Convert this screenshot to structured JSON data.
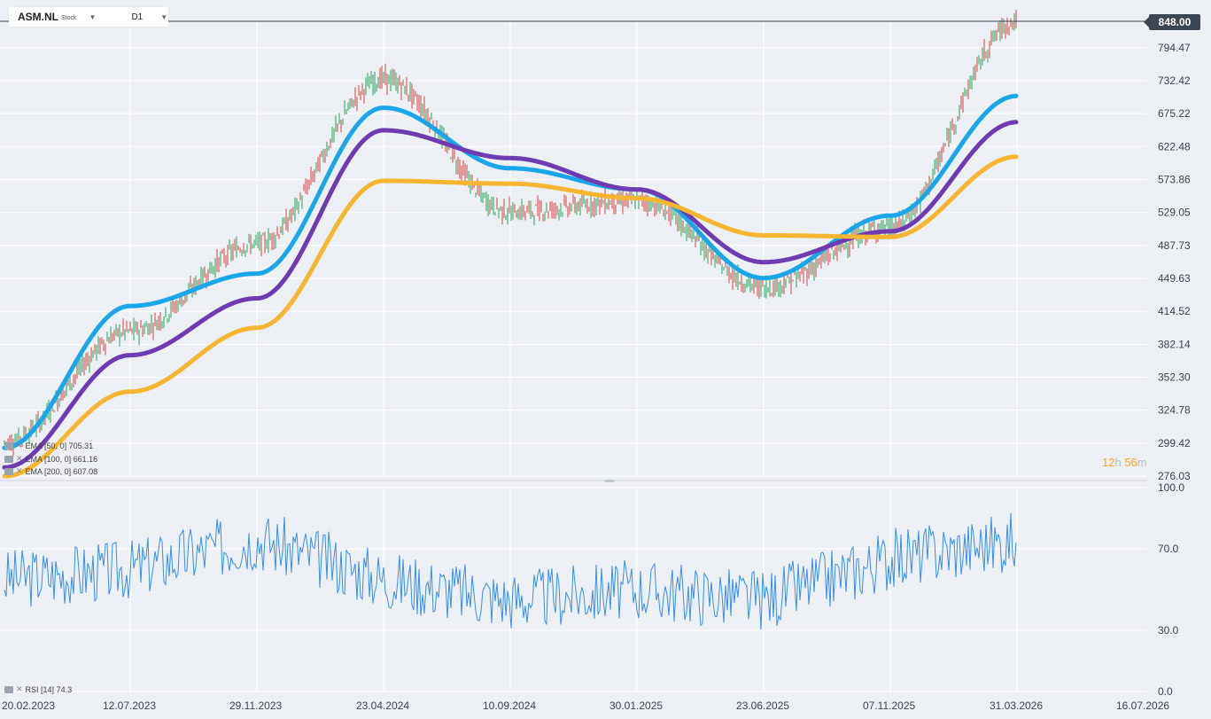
{
  "header": {
    "symbol": "ASM.NL",
    "symbol_type": "Stock",
    "interval": "D1"
  },
  "price_tag": "848.00",
  "timer": {
    "hours": "12",
    "h_unit": "h",
    "minutes": "56",
    "m_unit": "m"
  },
  "legend": {
    "ema50": "EMA [50, 0] 705.31",
    "ema100": "EMA [100, 0] 661.16",
    "ema200": "EMA [200, 0] 607.08",
    "rsi": "RSI [14] 74.3"
  },
  "colors": {
    "background": "#eceff3",
    "grid": "#ffffff",
    "candle_up": "#26a65b",
    "candle_down": "#d64545",
    "ema50": "#1ba6e8",
    "ema100": "#6f3bb0",
    "ema200": "#f5b731",
    "rsi": "#3a8ee6",
    "price_line": "#3d4653"
  },
  "chart_data": [
    {
      "type": "candlestick",
      "title": "ASM.NL",
      "x_ticks": [
        "20.02.2023",
        "12.07.2023",
        "29.11.2023",
        "23.04.2024",
        "10.09.2024",
        "30.01.2025",
        "23.06.2025",
        "07.11.2025",
        "31.03.2026",
        "16.07.2026"
      ],
      "y_ticks": [
        "276.03",
        "299.42",
        "324.78",
        "352.30",
        "382.14",
        "414.52",
        "449.63",
        "487.73",
        "529.05",
        "573.86",
        "622.48",
        "675.22",
        "732.42",
        "794.47"
      ],
      "scale": "log",
      "ylim": [
        276.03,
        848.0
      ],
      "last_price": 848.0,
      "series": [
        {
          "name": "Price",
          "x": [
            "20.02.2023",
            "12.07.2023",
            "29.11.2023",
            "23.04.2024",
            "10.09.2024",
            "30.01.2025",
            "23.06.2025",
            "07.11.2025",
            "31.03.2026"
          ],
          "values": [
            300,
            395,
            490,
            735,
            530,
            545,
            440,
            510,
            848
          ]
        },
        {
          "name": "EMA [50, 0]",
          "x": [
            "20.02.2023",
            "12.07.2023",
            "29.11.2023",
            "23.04.2024",
            "10.09.2024",
            "30.01.2025",
            "23.06.2025",
            "07.11.2025",
            "31.03.2026"
          ],
          "values": [
            296,
            420,
            455,
            685,
            590,
            560,
            450,
            525,
            705.31
          ]
        },
        {
          "name": "EMA [100, 0]",
          "x": [
            "20.02.2023",
            "12.07.2023",
            "29.11.2023",
            "23.04.2024",
            "10.09.2024",
            "30.01.2025",
            "23.06.2025",
            "07.11.2025",
            "31.03.2026"
          ],
          "values": [
            282,
            372,
            428,
            648,
            605,
            560,
            468,
            505,
            661.16
          ]
        },
        {
          "name": "EMA [200, 0]",
          "x": [
            "20.02.2023",
            "12.07.2023",
            "29.11.2023",
            "23.04.2024",
            "10.09.2024",
            "30.01.2025",
            "23.06.2025",
            "07.11.2025",
            "31.03.2026"
          ],
          "values": [
            276,
            340,
            398,
            572,
            568,
            548,
            500,
            498,
            607.08
          ]
        }
      ]
    },
    {
      "type": "line",
      "title": "RSI [14]",
      "x_ticks": [
        "20.02.2023",
        "12.07.2023",
        "29.11.2023",
        "23.04.2024",
        "10.09.2024",
        "30.01.2025",
        "23.06.2025",
        "07.11.2025",
        "31.03.2026",
        "16.07.2026"
      ],
      "y_ticks": [
        "0.0",
        "30.0",
        "70.0",
        "100.0"
      ],
      "ylim": [
        0,
        100
      ],
      "series": [
        {
          "name": "RSI [14]",
          "x": [
            "20.02.2023",
            "12.07.2023",
            "29.11.2023",
            "23.04.2024",
            "10.09.2024",
            "30.01.2025",
            "23.06.2025",
            "07.11.2025",
            "31.03.2026"
          ],
          "values": [
            55,
            60,
            75,
            55,
            45,
            50,
            45,
            65,
            74.3
          ]
        }
      ]
    }
  ]
}
